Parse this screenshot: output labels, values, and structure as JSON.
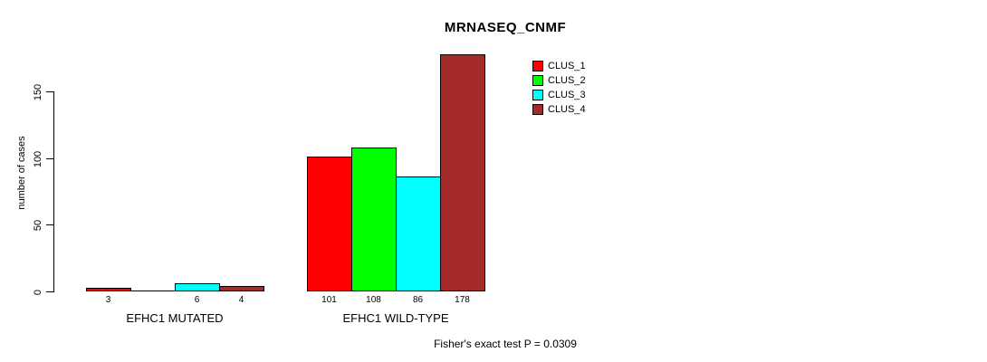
{
  "chart_data": {
    "type": "bar",
    "title": "MRNASEQ_CNMF",
    "ylabel": "number of cases",
    "xlabel": "",
    "ylim": [
      0,
      150
    ],
    "yticks": [
      "0",
      "50",
      "100",
      "150"
    ],
    "grid": false,
    "legend_position": "top-right",
    "categories": [
      "EFHC1 MUTATED",
      "EFHC1 WILD-TYPE"
    ],
    "series": [
      {
        "name": "CLUS_1",
        "color": "#ff0000",
        "values": [
          3,
          101
        ]
      },
      {
        "name": "CLUS_2",
        "color": "#00ff00",
        "values": [
          0,
          108
        ]
      },
      {
        "name": "CLUS_3",
        "color": "#00ffff",
        "values": [
          6,
          86
        ]
      },
      {
        "name": "CLUS_4",
        "color": "#a52a2a",
        "values": [
          4,
          178
        ]
      }
    ],
    "bar_labels": [
      [
        "3",
        "",
        "6",
        "4"
      ],
      [
        "101",
        "108",
        "86",
        "178"
      ]
    ],
    "annotation": "Fisher's exact test P = 0.0309",
    "axis_color": "#000000",
    "background_color": "#ffffff"
  }
}
